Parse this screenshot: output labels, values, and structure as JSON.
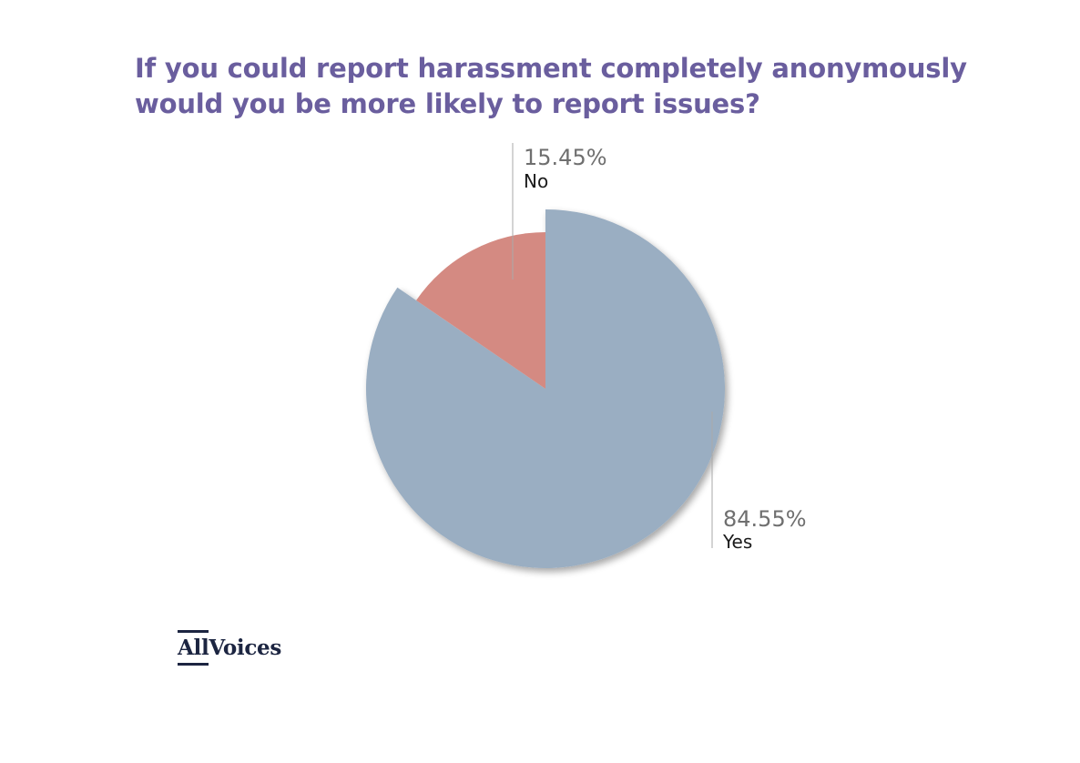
{
  "chart_data": {
    "type": "pie",
    "title": [
      "If you could report harassment completely anonymously",
      "would you be more likely to report issues?"
    ],
    "slices": [
      {
        "label": "Yes",
        "value": 84.55,
        "value_label": "84.55%",
        "color": "#9aaec2",
        "exploded": true
      },
      {
        "label": "No",
        "value": 15.45,
        "value_label": "15.45%",
        "color": "#d48a82",
        "exploded": false
      }
    ],
    "start": "12 o'clock",
    "direction": "clockwise"
  },
  "brand": {
    "logo_part1": "All",
    "logo_part2": "Voices",
    "title_color": "#6a5e9e",
    "logo_color": "#1c2541"
  }
}
